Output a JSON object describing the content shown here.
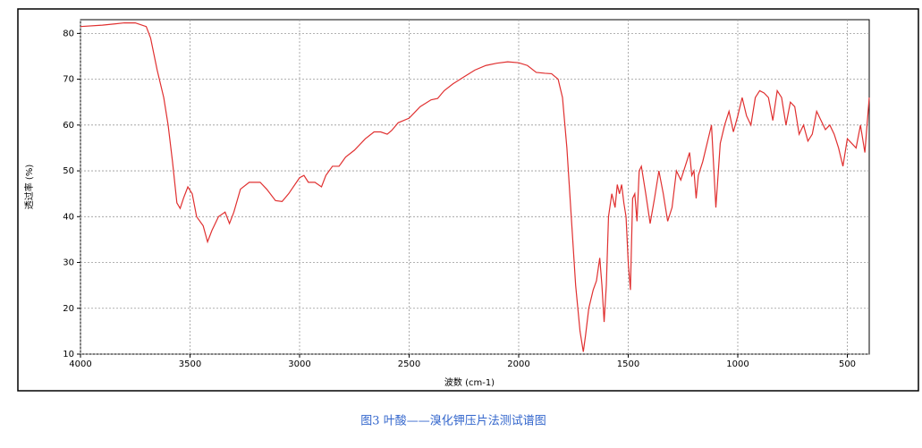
{
  "chart_data": {
    "type": "line",
    "x_label": "波数 (cm-1)",
    "y_label": "透过率 (%)",
    "caption": "图3 叶酸——溴化钾压片法测试谱图",
    "xlim": [
      4000,
      400
    ],
    "ylim": [
      10,
      83
    ],
    "xticks": [
      4000,
      3500,
      3000,
      2500,
      2000,
      1500,
      1000,
      500
    ],
    "yticks": [
      10,
      20,
      30,
      40,
      50,
      60,
      70,
      80
    ],
    "grid": true,
    "x": [
      4000,
      3900,
      3800,
      3750,
      3700,
      3680,
      3650,
      3620,
      3600,
      3580,
      3560,
      3545,
      3530,
      3510,
      3490,
      3470,
      3440,
      3420,
      3400,
      3370,
      3340,
      3320,
      3300,
      3270,
      3230,
      3180,
      3150,
      3110,
      3080,
      3050,
      3000,
      2980,
      2960,
      2930,
      2900,
      2880,
      2850,
      2820,
      2790,
      2750,
      2700,
      2660,
      2630,
      2600,
      2580,
      2550,
      2500,
      2450,
      2400,
      2370,
      2340,
      2300,
      2250,
      2200,
      2150,
      2100,
      2050,
      2000,
      1960,
      1920,
      1880,
      1850,
      1820,
      1800,
      1780,
      1760,
      1740,
      1720,
      1705,
      1695,
      1680,
      1660,
      1645,
      1630,
      1620,
      1610,
      1600,
      1590,
      1575,
      1560,
      1550,
      1540,
      1530,
      1520,
      1510,
      1500,
      1490,
      1480,
      1470,
      1460,
      1450,
      1440,
      1420,
      1400,
      1380,
      1360,
      1340,
      1320,
      1300,
      1280,
      1260,
      1240,
      1220,
      1210,
      1200,
      1190,
      1180,
      1160,
      1140,
      1120,
      1100,
      1080,
      1060,
      1040,
      1020,
      1000,
      980,
      960,
      940,
      920,
      900,
      880,
      860,
      840,
      820,
      800,
      780,
      760,
      740,
      720,
      700,
      680,
      660,
      640,
      620,
      600,
      580,
      560,
      540,
      520,
      500,
      480,
      460,
      440,
      420,
      400
    ],
    "series": [
      {
        "name": "叶酸",
        "color": "#e03030",
        "values": [
          81.5,
          81.8,
          82.3,
          82.3,
          81.5,
          79,
          72,
          66,
          60,
          52,
          43,
          41.8,
          44,
          46.5,
          45,
          40,
          38,
          34.5,
          37,
          40,
          41,
          38.5,
          41,
          46,
          47.5,
          47.5,
          46,
          43.5,
          43.3,
          45,
          48.5,
          49,
          47.5,
          47.5,
          46.5,
          49,
          51,
          51,
          53,
          54.5,
          57,
          58.5,
          58.5,
          58,
          58.8,
          60.5,
          61.5,
          64,
          65.5,
          65.8,
          67.5,
          69,
          70.5,
          72,
          73,
          73.5,
          73.8,
          73.6,
          73,
          71.5,
          71.3,
          71.2,
          70,
          66,
          55,
          40,
          25,
          15,
          10.5,
          14,
          20,
          24,
          26,
          31,
          25,
          17,
          25,
          40,
          45,
          42,
          47,
          45,
          47,
          43,
          40,
          30,
          24,
          44,
          45,
          39,
          50,
          51,
          45,
          38.5,
          44,
          50,
          45,
          39,
          42,
          50,
          48,
          51,
          54,
          49,
          50,
          44,
          49,
          52,
          56,
          60,
          42,
          56,
          60,
          63,
          58.5,
          62,
          66,
          62,
          60,
          66,
          67.5,
          67,
          66,
          61,
          67.5,
          66,
          60,
          65,
          64,
          58,
          60,
          56.5,
          58,
          63,
          61,
          59,
          60,
          58,
          55,
          51,
          57,
          56,
          55,
          60,
          54,
          66
        ]
      }
    ]
  }
}
